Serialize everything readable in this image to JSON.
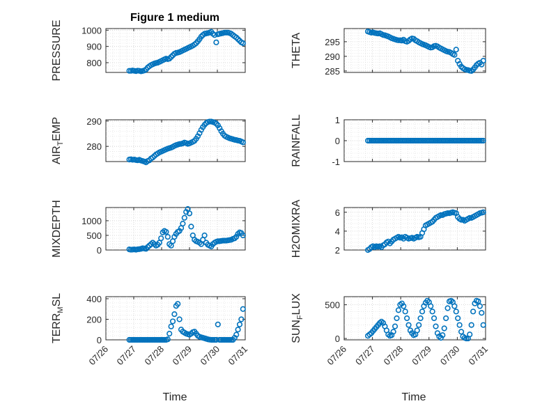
{
  "figure": {
    "title": "Figure 1 medium",
    "x_axis_label": "Time",
    "x_tick_labels": [
      "07/26",
      "07/27",
      "07/28",
      "07/29",
      "07/30",
      "07/31"
    ],
    "marker_color": "#0072BD"
  },
  "chart_data": [
    {
      "type": "scatter",
      "ylabel": "PRESSURE",
      "xlim": [
        0,
        5
      ],
      "ylim": [
        740,
        1010
      ],
      "yticks": [
        800,
        900,
        1000
      ],
      "x": [
        0.84,
        0.9,
        0.96,
        1.02,
        1.08,
        1.14,
        1.2,
        1.26,
        1.32,
        1.38,
        1.44,
        1.5,
        1.56,
        1.62,
        1.68,
        1.74,
        1.8,
        1.86,
        1.92,
        1.98,
        2.04,
        2.1,
        2.16,
        2.22,
        2.28,
        2.34,
        2.4,
        2.46,
        2.52,
        2.58,
        2.64,
        2.7,
        2.76,
        2.82,
        2.88,
        2.94,
        3.0,
        3.06,
        3.12,
        3.18,
        3.24,
        3.3,
        3.36,
        3.42,
        3.48,
        3.54,
        3.6,
        3.66,
        3.72,
        3.78,
        3.84,
        3.9,
        3.96,
        4.02,
        4.08,
        4.14,
        4.2,
        4.26,
        4.32,
        4.38,
        4.44,
        4.5,
        4.56,
        4.62,
        4.68,
        4.74,
        4.8,
        4.86,
        4.92
      ],
      "y": [
        750,
        750,
        752,
        750,
        748,
        751,
        750,
        747,
        749,
        752,
        758,
        770,
        778,
        785,
        790,
        795,
        798,
        800,
        805,
        810,
        815,
        820,
        825,
        822,
        825,
        835,
        845,
        855,
        860,
        862,
        865,
        870,
        875,
        880,
        885,
        890,
        895,
        900,
        905,
        912,
        920,
        932,
        945,
        960,
        970,
        978,
        980,
        982,
        985,
        990,
        978,
        970,
        925,
        975,
        978,
        980,
        982,
        985,
        985,
        985,
        982,
        978,
        970,
        962,
        955,
        945,
        935,
        925,
        920
      ]
    },
    {
      "type": "scatter",
      "ylabel": "THETA",
      "xlim": [
        0,
        5
      ],
      "ylim": [
        284.5,
        299.5
      ],
      "yticks": [
        285,
        290,
        295
      ],
      "x": [
        0.84,
        0.9,
        0.96,
        1.02,
        1.08,
        1.14,
        1.2,
        1.26,
        1.32,
        1.38,
        1.44,
        1.5,
        1.56,
        1.62,
        1.68,
        1.74,
        1.8,
        1.86,
        1.92,
        1.98,
        2.04,
        2.1,
        2.16,
        2.22,
        2.28,
        2.34,
        2.4,
        2.46,
        2.52,
        2.58,
        2.64,
        2.7,
        2.76,
        2.82,
        2.88,
        2.94,
        3.0,
        3.06,
        3.12,
        3.18,
        3.24,
        3.3,
        3.36,
        3.42,
        3.48,
        3.54,
        3.6,
        3.66,
        3.72,
        3.78,
        3.84,
        3.9,
        3.96,
        4.02,
        4.08,
        4.14,
        4.2,
        4.26,
        4.32,
        4.38,
        4.44,
        4.5,
        4.56,
        4.62,
        4.68,
        4.74,
        4.8,
        4.86,
        4.92
      ],
      "y": [
        298.5,
        298.3,
        298.1,
        298.2,
        298.0,
        297.9,
        297.8,
        297.9,
        297.6,
        297.3,
        297.2,
        297.0,
        296.8,
        296.5,
        296.2,
        296.0,
        295.8,
        295.6,
        295.5,
        295.5,
        295.4,
        295.7,
        295.2,
        295.0,
        295.3,
        295.8,
        296.1,
        296.0,
        295.5,
        295.2,
        294.8,
        294.5,
        294.2,
        294.0,
        293.8,
        293.5,
        293.2,
        293.0,
        293.1,
        293.5,
        293.6,
        293.4,
        293.0,
        292.7,
        292.4,
        292.1,
        291.8,
        291.6,
        291.5,
        291.2,
        290.8,
        290.5,
        292.3,
        288.5,
        287.4,
        286.5,
        286.0,
        285.6,
        285.4,
        285.3,
        285.1,
        285.0,
        285.5,
        286.2,
        287.0,
        287.5,
        287.8,
        287.2,
        288.5
      ]
    },
    {
      "type": "scatter",
      "ylabel": "AIR_TEMP",
      "xlim": [
        0,
        5
      ],
      "ylim": [
        274,
        290.5
      ],
      "yticks": [
        280,
        290
      ],
      "x": [
        0.84,
        0.9,
        0.96,
        1.02,
        1.08,
        1.14,
        1.2,
        1.26,
        1.32,
        1.38,
        1.44,
        1.5,
        1.56,
        1.62,
        1.68,
        1.74,
        1.8,
        1.86,
        1.92,
        1.98,
        2.04,
        2.1,
        2.16,
        2.22,
        2.28,
        2.34,
        2.4,
        2.46,
        2.52,
        2.58,
        2.64,
        2.7,
        2.76,
        2.82,
        2.88,
        2.94,
        3.0,
        3.06,
        3.12,
        3.18,
        3.24,
        3.3,
        3.36,
        3.42,
        3.48,
        3.54,
        3.6,
        3.66,
        3.72,
        3.78,
        3.84,
        3.9,
        3.96,
        4.02,
        4.08,
        4.14,
        4.2,
        4.26,
        4.32,
        4.38,
        4.44,
        4.5,
        4.56,
        4.62,
        4.68,
        4.74,
        4.8,
        4.86,
        4.92
      ],
      "y": [
        274.8,
        274.9,
        274.7,
        274.8,
        274.6,
        274.5,
        274.7,
        274.4,
        274.2,
        274.0,
        273.7,
        274.2,
        274.5,
        275.2,
        275.6,
        276.2,
        276.8,
        277.2,
        277.6,
        277.9,
        278.2,
        278.5,
        278.8,
        279.1,
        279.3,
        279.5,
        279.8,
        280.2,
        280.5,
        280.7,
        280.9,
        281.0,
        281.2,
        281.5,
        281.3,
        281.0,
        281.2,
        281.5,
        281.8,
        282.2,
        283.0,
        284.0,
        285.2,
        286.5,
        287.6,
        288.5,
        289.2,
        289.6,
        289.8,
        289.8,
        289.6,
        289.4,
        289.0,
        288.3,
        287.2,
        286.0,
        285.0,
        284.2,
        283.8,
        283.5,
        283.2,
        283.0,
        282.8,
        282.6,
        282.5,
        282.3,
        282.2,
        281.9,
        281.6
      ]
    },
    {
      "type": "scatter",
      "ylabel": "RAINFALL",
      "xlim": [
        0,
        5
      ],
      "ylim": [
        -1,
        1
      ],
      "yticks": [
        -1,
        0,
        1
      ],
      "x": [
        0.84,
        0.9,
        0.96,
        1.02,
        1.08,
        1.14,
        1.2,
        1.26,
        1.32,
        1.38,
        1.44,
        1.5,
        1.56,
        1.62,
        1.68,
        1.74,
        1.8,
        1.86,
        1.92,
        1.98,
        2.04,
        2.1,
        2.16,
        2.22,
        2.28,
        2.34,
        2.4,
        2.46,
        2.52,
        2.58,
        2.64,
        2.7,
        2.76,
        2.82,
        2.88,
        2.94,
        3.0,
        3.06,
        3.12,
        3.18,
        3.24,
        3.3,
        3.36,
        3.42,
        3.48,
        3.54,
        3.6,
        3.66,
        3.72,
        3.78,
        3.84,
        3.9,
        3.96,
        4.02,
        4.08,
        4.14,
        4.2,
        4.26,
        4.32,
        4.38,
        4.44,
        4.5,
        4.56,
        4.62,
        4.68,
        4.74,
        4.8,
        4.86,
        4.92
      ],
      "y": [
        0,
        0,
        0,
        0,
        0,
        0,
        0,
        0,
        0,
        0,
        0,
        0,
        0,
        0,
        0,
        0,
        0,
        0,
        0,
        0,
        0,
        0,
        0,
        0,
        0,
        0,
        0,
        0,
        0,
        0,
        0,
        0,
        0,
        0,
        0,
        0,
        0,
        0,
        0,
        0,
        0,
        0,
        0,
        0,
        0,
        0,
        0,
        0,
        0,
        0,
        0,
        0,
        0,
        0,
        0,
        0,
        0,
        0,
        0,
        0,
        0,
        0,
        0,
        0,
        0,
        0,
        0,
        0,
        0
      ]
    },
    {
      "type": "scatter",
      "ylabel": "MIXDEPTH",
      "xlim": [
        0,
        5
      ],
      "ylim": [
        0,
        1450
      ],
      "yticks": [
        0,
        500,
        1000
      ],
      "x": [
        0.84,
        0.9,
        0.96,
        1.02,
        1.08,
        1.14,
        1.2,
        1.26,
        1.32,
        1.38,
        1.44,
        1.5,
        1.56,
        1.62,
        1.68,
        1.74,
        1.8,
        1.86,
        1.92,
        1.98,
        2.04,
        2.1,
        2.16,
        2.22,
        2.28,
        2.34,
        2.4,
        2.46,
        2.52,
        2.58,
        2.64,
        2.7,
        2.76,
        2.82,
        2.88,
        2.94,
        3.0,
        3.06,
        3.12,
        3.18,
        3.24,
        3.3,
        3.36,
        3.42,
        3.48,
        3.54,
        3.6,
        3.66,
        3.72,
        3.78,
        3.84,
        3.9,
        3.96,
        4.02,
        4.08,
        4.14,
        4.2,
        4.26,
        4.32,
        4.38,
        4.44,
        4.5,
        4.56,
        4.62,
        4.68,
        4.74,
        4.8,
        4.86,
        4.92
      ],
      "y": [
        20,
        10,
        15,
        20,
        10,
        25,
        30,
        40,
        60,
        50,
        40,
        100,
        150,
        200,
        250,
        200,
        150,
        180,
        250,
        400,
        600,
        650,
        620,
        450,
        200,
        150,
        300,
        450,
        550,
        620,
        650,
        750,
        900,
        1100,
        1300,
        1400,
        1250,
        800,
        500,
        350,
        300,
        280,
        250,
        200,
        350,
        500,
        250,
        180,
        150,
        120,
        200,
        250,
        280,
        300,
        300,
        310,
        320,
        320,
        320,
        330,
        340,
        350,
        380,
        400,
        450,
        550,
        600,
        580,
        500
      ]
    },
    {
      "type": "scatter",
      "ylabel": "H2OMIXRA",
      "xlim": [
        0,
        5
      ],
      "ylim": [
        2,
        6.5
      ],
      "yticks": [
        2,
        4,
        6
      ],
      "x": [
        0.84,
        0.9,
        0.96,
        1.02,
        1.08,
        1.14,
        1.2,
        1.26,
        1.32,
        1.38,
        1.44,
        1.5,
        1.56,
        1.62,
        1.68,
        1.74,
        1.8,
        1.86,
        1.92,
        1.98,
        2.04,
        2.1,
        2.16,
        2.22,
        2.28,
        2.34,
        2.4,
        2.46,
        2.52,
        2.58,
        2.64,
        2.7,
        2.76,
        2.82,
        2.88,
        2.94,
        3.0,
        3.06,
        3.12,
        3.18,
        3.24,
        3.3,
        3.36,
        3.42,
        3.48,
        3.54,
        3.6,
        3.66,
        3.72,
        3.78,
        3.84,
        3.9,
        3.96,
        4.02,
        4.08,
        4.14,
        4.2,
        4.26,
        4.32,
        4.38,
        4.44,
        4.5,
        4.56,
        4.62,
        4.68,
        4.74,
        4.8,
        4.86,
        4.92
      ],
      "y": [
        2.0,
        2.1,
        2.3,
        2.4,
        2.3,
        2.4,
        2.35,
        2.4,
        2.3,
        2.5,
        2.6,
        2.8,
        2.9,
        2.7,
        2.9,
        3.1,
        3.2,
        3.3,
        3.4,
        3.3,
        3.35,
        3.2,
        3.4,
        3.3,
        3.2,
        3.25,
        3.3,
        3.2,
        3.3,
        3.4,
        3.35,
        3.4,
        3.8,
        4.2,
        4.6,
        4.7,
        4.8,
        4.9,
        5.0,
        5.2,
        5.4,
        5.5,
        5.6,
        5.7,
        5.7,
        5.8,
        5.85,
        5.9,
        5.9,
        5.95,
        6.0,
        5.95,
        5.9,
        5.5,
        5.3,
        5.2,
        5.2,
        5.1,
        5.2,
        5.3,
        5.4,
        5.4,
        5.5,
        5.6,
        5.7,
        5.8,
        5.9,
        5.95,
        6.0
      ]
    },
    {
      "type": "scatter",
      "ylabel": "TERR_MSL",
      "xlim": [
        0,
        5
      ],
      "ylim": [
        0,
        420
      ],
      "yticks": [
        0,
        200,
        400
      ],
      "x": [
        0.84,
        0.9,
        0.96,
        1.02,
        1.08,
        1.14,
        1.2,
        1.26,
        1.32,
        1.38,
        1.44,
        1.5,
        1.56,
        1.62,
        1.68,
        1.74,
        1.8,
        1.86,
        1.92,
        1.98,
        2.04,
        2.1,
        2.16,
        2.22,
        2.28,
        2.34,
        2.4,
        2.46,
        2.52,
        2.58,
        2.64,
        2.7,
        2.76,
        2.82,
        2.88,
        2.94,
        3.0,
        3.06,
        3.12,
        3.18,
        3.24,
        3.3,
        3.36,
        3.42,
        3.48,
        3.54,
        3.6,
        3.66,
        3.72,
        3.78,
        3.84,
        3.9,
        3.96,
        4.02,
        4.08,
        4.14,
        4.2,
        4.26,
        4.32,
        4.38,
        4.44,
        4.5,
        4.56,
        4.62,
        4.68,
        4.74,
        4.8,
        4.86,
        4.92
      ],
      "y": [
        0,
        0,
        0,
        0,
        0,
        0,
        0,
        0,
        0,
        0,
        0,
        0,
        0,
        0,
        0,
        0,
        0,
        0,
        0,
        0,
        0,
        0,
        0,
        5,
        60,
        130,
        180,
        250,
        330,
        350,
        200,
        100,
        80,
        70,
        60,
        55,
        50,
        60,
        75,
        80,
        60,
        40,
        30,
        25,
        20,
        15,
        10,
        5,
        2,
        0,
        0,
        0,
        0,
        150,
        0,
        0,
        0,
        0,
        0,
        0,
        0,
        0,
        0,
        20,
        50,
        100,
        150,
        200,
        300
      ]
    },
    {
      "type": "scatter",
      "ylabel": "SUN_FLUX",
      "xlim": [
        0,
        5
      ],
      "ylim": [
        -20,
        620
      ],
      "yticks": [
        0,
        500
      ],
      "x": [
        0.84,
        0.9,
        0.96,
        1.02,
        1.08,
        1.14,
        1.2,
        1.26,
        1.32,
        1.38,
        1.44,
        1.5,
        1.56,
        1.62,
        1.68,
        1.74,
        1.8,
        1.86,
        1.92,
        1.98,
        2.04,
        2.1,
        2.16,
        2.22,
        2.28,
        2.34,
        2.4,
        2.46,
        2.52,
        2.58,
        2.64,
        2.7,
        2.76,
        2.82,
        2.88,
        2.94,
        3.0,
        3.06,
        3.12,
        3.18,
        3.24,
        3.3,
        3.36,
        3.42,
        3.48,
        3.54,
        3.6,
        3.66,
        3.72,
        3.78,
        3.84,
        3.9,
        3.96,
        4.02,
        4.08,
        4.14,
        4.2,
        4.26,
        4.32,
        4.38,
        4.44,
        4.5,
        4.56,
        4.62,
        4.68,
        4.74,
        4.8,
        4.86,
        4.92
      ],
      "y": [
        40,
        60,
        80,
        110,
        140,
        170,
        200,
        230,
        250,
        230,
        180,
        120,
        60,
        40,
        50,
        100,
        180,
        300,
        420,
        500,
        520,
        480,
        400,
        300,
        200,
        120,
        80,
        50,
        60,
        120,
        200,
        300,
        400,
        480,
        530,
        560,
        540,
        480,
        400,
        300,
        180,
        80,
        30,
        10,
        50,
        150,
        300,
        450,
        550,
        560,
        540,
        480,
        400,
        300,
        200,
        100,
        30,
        10,
        0,
        0,
        60,
        200,
        400,
        520,
        560,
        550,
        480,
        380,
        200
      ]
    }
  ]
}
